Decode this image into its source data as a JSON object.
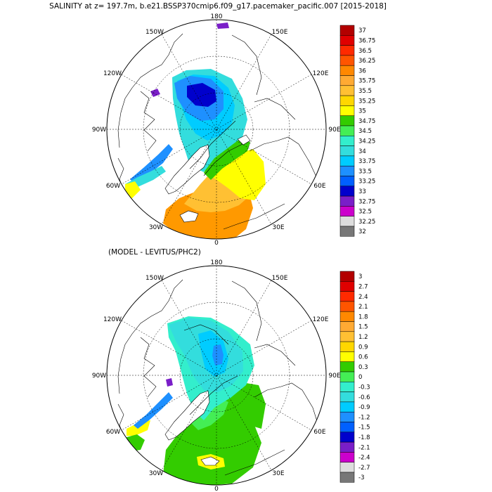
{
  "top_panel": {
    "title": "SALINITY at z= 197.7m, b.e21.BSSP370cmip6.f09_g17.pacemaker_pacific.007 [2015-2018]",
    "lon_labels": [
      "180",
      "150E",
      "120E",
      "90E",
      "60E",
      "30E",
      "0",
      "30W",
      "60W",
      "90W",
      "120W",
      "150W"
    ],
    "colorbar": {
      "labels": [
        "37",
        "36.75",
        "36.5",
        "36.25",
        "36",
        "35.75",
        "35.5",
        "35.25",
        "35",
        "34.75",
        "34.5",
        "34.25",
        "34",
        "33.75",
        "33.5",
        "33.25",
        "33",
        "32.75",
        "32.5",
        "32.25",
        "32"
      ],
      "colors": [
        "#b30000",
        "#e00000",
        "#ff2a00",
        "#ff5500",
        "#ff8800",
        "#ffaa33",
        "#ffc033",
        "#ffd700",
        "#ffff00",
        "#33cc00",
        "#44ee55",
        "#33eecc",
        "#33dddd",
        "#00ccff",
        "#1e90ff",
        "#0060ff",
        "#0000cc",
        "#7a1ec8",
        "#cc00cc",
        "#dddddd",
        "#777777"
      ]
    }
  },
  "bottom_panel": {
    "title": "(MODEL - LEVITUS/PHC2)",
    "lon_labels": [
      "180",
      "150E",
      "120E",
      "90E",
      "60E",
      "30E",
      "0",
      "30W",
      "60W",
      "90W",
      "120W",
      "150W"
    ],
    "colorbar": {
      "labels": [
        "3",
        "2.7",
        "2.4",
        "2.1",
        "1.8",
        "1.5",
        "1.2",
        "0.9",
        "0.6",
        "0.3",
        "0",
        "-0.3",
        "-0.6",
        "-0.9",
        "-1.2",
        "-1.5",
        "-1.8",
        "-2.1",
        "-2.4",
        "-2.7",
        "-3"
      ],
      "colors": [
        "#b30000",
        "#e00000",
        "#ff2a00",
        "#ff5500",
        "#ff8800",
        "#ffaa33",
        "#ffc033",
        "#ffd700",
        "#ffff00",
        "#33cc00",
        "#44ee55",
        "#33eecc",
        "#33dddd",
        "#00ccff",
        "#1e90ff",
        "#0060ff",
        "#0000cc",
        "#7a1ec8",
        "#cc00cc",
        "#dddddd",
        "#777777"
      ]
    }
  }
}
